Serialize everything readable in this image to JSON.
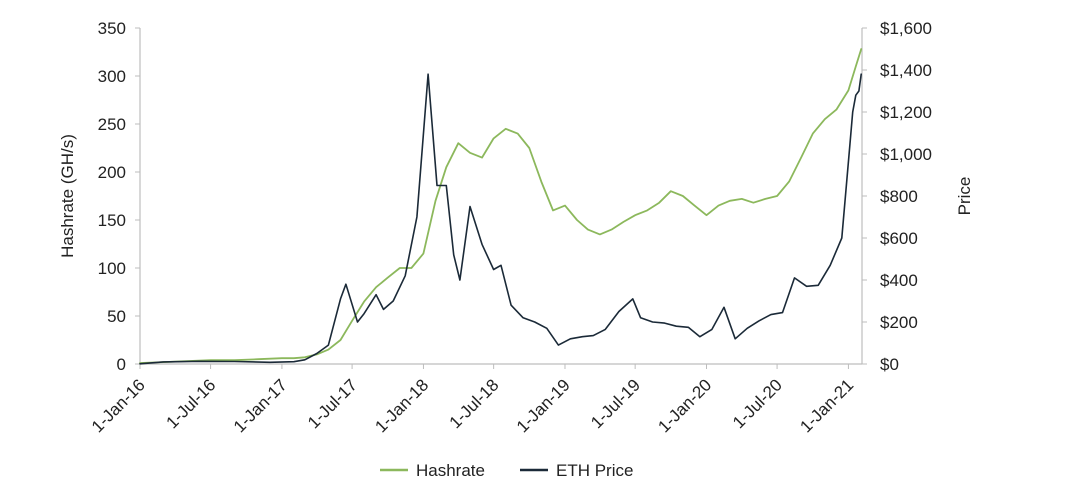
{
  "chart_data": {
    "type": "line",
    "title": "",
    "xlabel": "",
    "ylabel": "Hashrate (GH/s)",
    "y2label": "Price",
    "x_ticks": [
      "1-Jan-16",
      "1-Jul-16",
      "1-Jan-17",
      "1-Jul-17",
      "1-Jan-18",
      "1-Jul-18",
      "1-Jan-19",
      "1-Jul-19",
      "1-Jan-20",
      "1-Jul-20",
      "1-Jan-21"
    ],
    "y_ticks": [
      "0",
      "50",
      "100",
      "150",
      "200",
      "250",
      "300",
      "350"
    ],
    "y2_ticks": [
      "$0",
      "$200",
      "$400",
      "$600",
      "$800",
      "$1,000",
      "$1,200",
      "$1,400",
      "$1,600"
    ],
    "xlim": [
      "2016-01-01",
      "2021-02-05"
    ],
    "ylim": [
      0,
      350
    ],
    "y2lim": [
      0,
      1600
    ],
    "grid": false,
    "legend_position": "bottom",
    "series": [
      {
        "name": "Hashrate",
        "axis": "left",
        "color": "#8cb85c",
        "points": [
          [
            "2016-01-01",
            1
          ],
          [
            "2016-03-01",
            2
          ],
          [
            "2016-05-01",
            3
          ],
          [
            "2016-07-01",
            4
          ],
          [
            "2016-09-01",
            4
          ],
          [
            "2016-11-01",
            5
          ],
          [
            "2017-01-01",
            6
          ],
          [
            "2017-02-01",
            6
          ],
          [
            "2017-03-01",
            7
          ],
          [
            "2017-04-01",
            10
          ],
          [
            "2017-05-01",
            15
          ],
          [
            "2017-06-01",
            25
          ],
          [
            "2017-07-01",
            45
          ],
          [
            "2017-08-01",
            65
          ],
          [
            "2017-09-01",
            80
          ],
          [
            "2017-10-01",
            90
          ],
          [
            "2017-11-01",
            100
          ],
          [
            "2017-12-01",
            100
          ],
          [
            "2018-01-01",
            115
          ],
          [
            "2018-01-15",
            140
          ],
          [
            "2018-02-01",
            170
          ],
          [
            "2018-03-01",
            205
          ],
          [
            "2018-04-01",
            230
          ],
          [
            "2018-05-01",
            220
          ],
          [
            "2018-06-01",
            215
          ],
          [
            "2018-07-01",
            235
          ],
          [
            "2018-08-01",
            245
          ],
          [
            "2018-09-01",
            240
          ],
          [
            "2018-10-01",
            225
          ],
          [
            "2018-11-01",
            190
          ],
          [
            "2018-12-01",
            160
          ],
          [
            "2019-01-01",
            165
          ],
          [
            "2019-02-01",
            150
          ],
          [
            "2019-03-01",
            140
          ],
          [
            "2019-04-01",
            135
          ],
          [
            "2019-05-01",
            140
          ],
          [
            "2019-06-01",
            148
          ],
          [
            "2019-07-01",
            155
          ],
          [
            "2019-08-01",
            160
          ],
          [
            "2019-09-01",
            168
          ],
          [
            "2019-10-01",
            180
          ],
          [
            "2019-11-01",
            175
          ],
          [
            "2019-12-01",
            165
          ],
          [
            "2020-01-01",
            155
          ],
          [
            "2020-02-01",
            165
          ],
          [
            "2020-03-01",
            170
          ],
          [
            "2020-04-01",
            172
          ],
          [
            "2020-05-01",
            168
          ],
          [
            "2020-06-01",
            172
          ],
          [
            "2020-07-01",
            175
          ],
          [
            "2020-08-01",
            190
          ],
          [
            "2020-09-01",
            215
          ],
          [
            "2020-10-01",
            240
          ],
          [
            "2020-11-01",
            255
          ],
          [
            "2020-12-01",
            265
          ],
          [
            "2021-01-01",
            285
          ],
          [
            "2021-01-20",
            310
          ],
          [
            "2021-02-03",
            328
          ]
        ]
      },
      {
        "name": "ETH Price",
        "axis": "right",
        "color": "#1b2a38",
        "points": [
          [
            "2016-01-01",
            1
          ],
          [
            "2016-03-01",
            10
          ],
          [
            "2016-06-01",
            13
          ],
          [
            "2016-09-01",
            12
          ],
          [
            "2016-12-01",
            8
          ],
          [
            "2017-02-01",
            11
          ],
          [
            "2017-03-01",
            20
          ],
          [
            "2017-04-01",
            50
          ],
          [
            "2017-05-01",
            90
          ],
          [
            "2017-06-01",
            310
          ],
          [
            "2017-06-15",
            380
          ],
          [
            "2017-07-15",
            200
          ],
          [
            "2017-08-01",
            240
          ],
          [
            "2017-09-01",
            330
          ],
          [
            "2017-09-20",
            260
          ],
          [
            "2017-10-15",
            300
          ],
          [
            "2017-11-15",
            420
          ],
          [
            "2017-12-15",
            700
          ],
          [
            "2018-01-13",
            1380
          ],
          [
            "2018-02-05",
            850
          ],
          [
            "2018-03-01",
            850
          ],
          [
            "2018-03-20",
            520
          ],
          [
            "2018-04-05",
            400
          ],
          [
            "2018-05-01",
            750
          ],
          [
            "2018-06-01",
            570
          ],
          [
            "2018-07-01",
            450
          ],
          [
            "2018-07-20",
            470
          ],
          [
            "2018-08-15",
            280
          ],
          [
            "2018-09-15",
            220
          ],
          [
            "2018-10-15",
            200
          ],
          [
            "2018-11-15",
            170
          ],
          [
            "2018-12-15",
            90
          ],
          [
            "2019-01-15",
            120
          ],
          [
            "2019-02-15",
            130
          ],
          [
            "2019-03-15",
            135
          ],
          [
            "2019-04-15",
            165
          ],
          [
            "2019-05-20",
            250
          ],
          [
            "2019-06-25",
            310
          ],
          [
            "2019-07-15",
            220
          ],
          [
            "2019-08-15",
            200
          ],
          [
            "2019-09-15",
            195
          ],
          [
            "2019-10-15",
            180
          ],
          [
            "2019-11-15",
            175
          ],
          [
            "2019-12-15",
            130
          ],
          [
            "2020-01-15",
            165
          ],
          [
            "2020-02-15",
            270
          ],
          [
            "2020-03-15",
            120
          ],
          [
            "2020-04-15",
            170
          ],
          [
            "2020-05-15",
            205
          ],
          [
            "2020-06-15",
            235
          ],
          [
            "2020-07-15",
            245
          ],
          [
            "2020-08-15",
            410
          ],
          [
            "2020-09-15",
            370
          ],
          [
            "2020-10-15",
            375
          ],
          [
            "2020-11-15",
            470
          ],
          [
            "2020-12-15",
            600
          ],
          [
            "2021-01-05",
            1050
          ],
          [
            "2021-01-12",
            1200
          ],
          [
            "2021-01-20",
            1280
          ],
          [
            "2021-01-28",
            1300
          ],
          [
            "2021-02-03",
            1380
          ]
        ]
      }
    ]
  }
}
